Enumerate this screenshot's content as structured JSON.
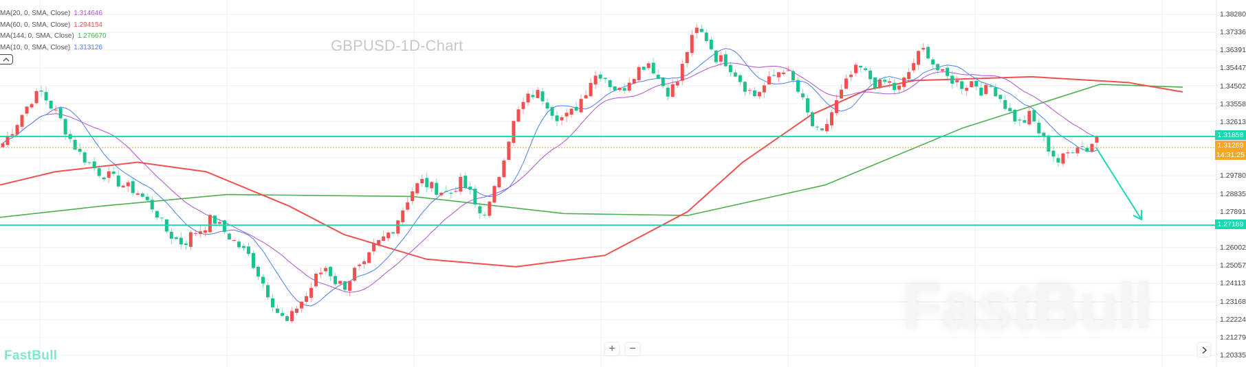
{
  "chart_data": {
    "type": "candlestick",
    "title": "GBPUSD-1D-Chart",
    "symbol": "GBPUSD",
    "timeframe": "1D",
    "xlabel": "",
    "ylabel": "",
    "y_axis_ticks": [
      1.3828,
      1.37336,
      1.36391,
      1.35447,
      1.34502,
      1.33558,
      1.32613,
      1.31858,
      1.31269,
      1.2978,
      1.28835,
      1.27891,
      1.27189,
      1.26002,
      1.25057,
      1.24113,
      1.23168,
      1.22224,
      1.21279,
      1.20335
    ],
    "ylim": [
      1.2034,
      1.3828
    ],
    "grid": true,
    "up_color": "#f0504f",
    "down_color": "#19c28f",
    "indicators": [
      {
        "name": "MA(20, 0, SMA, Close)",
        "value": "1.314646",
        "color": "#b04fd3"
      },
      {
        "name": "MA(60, 0, SMA, Close)",
        "value": "1.294154",
        "color": "#f0504f"
      },
      {
        "name": "MA(144, 0, SMA, Close)",
        "value": "1.276670",
        "color": "#4caf50"
      },
      {
        "name": "MA(10, 0, SMA, Close)",
        "value": "1.313126",
        "color": "#4a7ff0"
      }
    ],
    "horizontal_lines": [
      {
        "price": 1.31858,
        "color": "#19d7b0",
        "label": "1.31858"
      },
      {
        "price": 1.27189,
        "color": "#19d7b0",
        "label": "1.27189"
      }
    ],
    "current_price": {
      "price": 1.31269,
      "label": "1.31269",
      "countdown": "14:31:25",
      "color": "#f5a623"
    },
    "annotation_arrow": {
      "from_price": 1.3127,
      "to_price": 1.2743,
      "color": "#19d7b0",
      "direction": "down"
    },
    "approx_close_path": [
      1.315,
      1.322,
      1.33,
      1.338,
      1.342,
      1.335,
      1.328,
      1.318,
      1.31,
      1.305,
      1.3,
      1.298,
      1.295,
      1.292,
      1.29,
      1.285,
      1.28,
      1.27,
      1.265,
      1.262,
      1.268,
      1.27,
      1.276,
      1.27,
      1.265,
      1.26,
      1.255,
      1.245,
      1.235,
      1.225,
      1.22,
      1.23,
      1.235,
      1.245,
      1.25,
      1.242,
      1.24,
      1.248,
      1.25,
      1.26,
      1.265,
      1.27,
      1.28,
      1.29,
      1.295,
      1.292,
      1.29,
      1.288,
      1.295,
      1.29,
      1.278,
      1.28,
      1.295,
      1.315,
      1.33,
      1.338,
      1.342,
      1.338,
      1.33,
      1.328,
      1.332,
      1.34,
      1.35,
      1.352,
      1.345,
      1.342,
      1.35,
      1.355,
      1.358,
      1.348,
      1.342,
      1.348,
      1.365,
      1.375,
      1.37,
      1.36,
      1.358,
      1.352,
      1.345,
      1.34,
      1.345,
      1.35,
      1.355,
      1.348,
      1.338,
      1.325,
      1.318,
      1.33,
      1.34,
      1.35,
      1.355,
      1.35,
      1.345,
      1.348,
      1.342,
      1.35,
      1.36,
      1.365,
      1.355,
      1.35,
      1.348,
      1.345,
      1.348,
      1.342,
      1.345,
      1.338,
      1.33,
      1.325,
      1.33,
      1.32,
      1.312,
      1.305,
      1.31,
      1.315,
      1.312,
      1.3186
    ]
  },
  "legend": {
    "items": [
      {
        "label": "MA(20, 0, SMA, Close)",
        "value": "1.314646"
      },
      {
        "label": "MA(60, 0, SMA, Close)",
        "value": "1.294154"
      },
      {
        "label": "MA(144, 0, SMA, Close)",
        "value": "1.276670"
      },
      {
        "label": "MA(10, 0, SMA, Close)",
        "value": "1.313126"
      }
    ]
  },
  "header": {
    "title": "GBPUSD-1D-Chart"
  },
  "axis": {
    "ticks": [
      "1.38280",
      "1.37336",
      "1.36391",
      "1.35447",
      "1.34502",
      "1.33558",
      "1.32613",
      "1.29780",
      "1.28835",
      "1.27891",
      "1.26002",
      "1.25057",
      "1.24113",
      "1.23168",
      "1.22224",
      "1.21279",
      "1.20335"
    ]
  },
  "tags": {
    "line_upper": "1.31858",
    "line_lower": "1.27189",
    "current_price": "1.31269",
    "countdown": "14:31:25"
  },
  "controls": {
    "zoom_in": "+",
    "zoom_out": "−"
  },
  "branding": {
    "logo_text": "FastBull",
    "watermark_text": "FastBull"
  }
}
